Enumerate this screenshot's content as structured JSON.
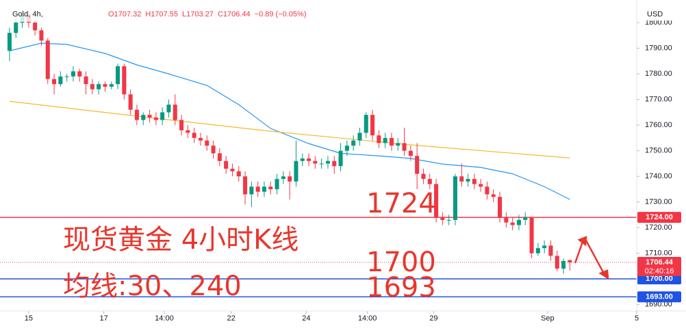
{
  "chart_data": {
    "type": "candlestick",
    "symbol": "Gold, 4h,",
    "header": [
      "O1707.32",
      "H1707.55",
      "L1703.27",
      "C1706.44",
      "−0.89 (−0.05%)"
    ],
    "currency": "USD",
    "up_color": "#089981",
    "down_color": "#f23645",
    "open": [
      1789,
      1796,
      1800,
      1803,
      1800,
      1797,
      1793,
      1778,
      1776,
      1779,
      1779,
      1781,
      1779,
      1776,
      1774,
      1776,
      1775,
      1776,
      1783,
      1772,
      1766,
      1762,
      1764,
      1763,
      1762,
      1765,
      1768,
      1762,
      1758,
      1757,
      1755,
      1754,
      1752,
      1749,
      1746,
      1743,
      1742,
      1740,
      1733,
      1736,
      1734,
      1736,
      1735,
      1739,
      1740,
      1738,
      1746,
      1747,
      1746,
      1745,
      1745,
      1746,
      1744,
      1750,
      1752,
      1754,
      1757,
      1764,
      1756,
      1753,
      1755,
      1752,
      1753,
      1750,
      1748,
      1741,
      1739,
      1737,
      1724,
      1723,
      1723,
      1740,
      1738,
      1739,
      1737,
      1736,
      1733,
      1732,
      1724,
      1722,
      1721,
      1723,
      1724,
      1710,
      1712,
      1713,
      1709,
      1704,
      1707.32
    ],
    "high": [
      1798,
      1802,
      1805,
      1804,
      1801,
      1798,
      1794,
      1780,
      1781,
      1780,
      1783,
      1782,
      1781,
      1778,
      1777,
      1777,
      1777,
      1784,
      1784,
      1774,
      1768,
      1765,
      1766,
      1765,
      1767,
      1770,
      1772,
      1764,
      1760,
      1759,
      1757,
      1756,
      1754,
      1751,
      1748,
      1745,
      1744,
      1742,
      1738,
      1738,
      1738,
      1738,
      1741,
      1742,
      1742,
      1754,
      1749,
      1749,
      1748,
      1747,
      1748,
      1748,
      1753,
      1754,
      1756,
      1759,
      1765,
      1766,
      1758,
      1757,
      1757,
      1755,
      1759,
      1752,
      1753,
      1743,
      1741,
      1739,
      1726,
      1725,
      1741,
      1745,
      1741,
      1741,
      1739,
      1738,
      1735,
      1734,
      1726,
      1724,
      1725,
      1726,
      1724,
      1714,
      1715,
      1715,
      1711,
      1708,
      1707.55
    ],
    "low": [
      1785,
      1794,
      1798,
      1798,
      1795,
      1791,
      1776,
      1772,
      1775,
      1777,
      1777,
      1777,
      1772,
      1772,
      1772,
      1773,
      1774,
      1774,
      1770,
      1764,
      1760,
      1760,
      1761,
      1760,
      1760,
      1763,
      1760,
      1756,
      1755,
      1753,
      1752,
      1750,
      1747,
      1744,
      1741,
      1740,
      1738,
      1729,
      1728,
      1732,
      1732,
      1733,
      1733,
      1737,
      1731,
      1736,
      1744,
      1744,
      1743,
      1743,
      1743,
      1741,
      1742,
      1748,
      1750,
      1752,
      1755,
      1754,
      1751,
      1751,
      1750,
      1750,
      1748,
      1746,
      1735,
      1737,
      1735,
      1722,
      1721,
      1721,
      1721,
      1736,
      1736,
      1735,
      1734,
      1731,
      1730,
      1722,
      1720,
      1719,
      1719,
      1721,
      1708,
      1709,
      1710,
      1707,
      1703,
      1702,
      1703.27
    ],
    "close": [
      1796,
      1800,
      1803,
      1800,
      1797,
      1793,
      1778,
      1776,
      1779,
      1779,
      1781,
      1779,
      1776,
      1774,
      1776,
      1775,
      1776,
      1783,
      1772,
      1766,
      1762,
      1764,
      1763,
      1762,
      1765,
      1768,
      1762,
      1758,
      1757,
      1755,
      1754,
      1752,
      1749,
      1746,
      1743,
      1742,
      1740,
      1733,
      1736,
      1734,
      1736,
      1735,
      1739,
      1740,
      1738,
      1746,
      1747,
      1746,
      1745,
      1745,
      1746,
      1744,
      1750,
      1752,
      1754,
      1757,
      1764,
      1756,
      1753,
      1755,
      1752,
      1753,
      1750,
      1748,
      1741,
      1739,
      1737,
      1724,
      1723,
      1723,
      1740,
      1738,
      1739,
      1737,
      1736,
      1733,
      1732,
      1724,
      1722,
      1721,
      1723,
      1724,
      1710,
      1712,
      1713,
      1709,
      1704,
      1707,
      1706.44
    ],
    "series": [
      {
        "color": "#2196f3",
        "x": [
          0,
          5,
          9,
          15,
          20,
          25,
          31,
          36,
          41,
          47,
          52,
          58,
          63,
          68,
          74,
          79,
          84,
          88
        ],
        "values": [
          1789,
          1792,
          1791.5,
          1788,
          1783.5,
          1780,
          1775.5,
          1768,
          1758.7,
          1752.8,
          1749,
          1748,
          1747,
          1744.8,
          1743.5,
          1741,
          1736,
          1731
        ]
      },
      {
        "color": "#f5b82e",
        "x": [
          0,
          20,
          41,
          63,
          88
        ],
        "values": [
          1769.3,
          1763.5,
          1757.6,
          1752.3,
          1747.2
        ]
      }
    ],
    "hlines": [
      {
        "value": 1724,
        "label": "1724.00",
        "color": "#f23645"
      },
      {
        "value": 1700,
        "label": "1700.00",
        "color": "#1e53e5"
      },
      {
        "value": 1693,
        "label": "1693.00",
        "color": "#1e53e5"
      }
    ],
    "last": {
      "value": 1706.44,
      "label": "1706.44",
      "countdown": "02:40:16",
      "color": "#f23645"
    },
    "annotations": [
      "1724",
      "现货黄金 4小时K线",
      "1700",
      "均线:30、240",
      "1693"
    ],
    "xlim": [
      -1.5,
      98.5
    ],
    "xticks": [
      {
        "value": 3,
        "label": "15"
      },
      {
        "value": 14.8,
        "label": "17"
      },
      {
        "value": 24.3,
        "label": "14:00"
      },
      {
        "value": 34.8,
        "label": "22"
      },
      {
        "value": 46.6,
        "label": "24"
      },
      {
        "value": 56.2,
        "label": "14:00"
      },
      {
        "value": 66.6,
        "label": "29"
      },
      {
        "value": 84.5,
        "label": "Sep"
      },
      {
        "value": 98.5,
        "label": "5"
      }
    ],
    "ylim": [
      1687.5,
      1806.7
    ],
    "yticks": [
      {
        "value": 1690,
        "label": "1690.00"
      },
      {
        "value": 1710,
        "label": "1710.00"
      },
      {
        "value": 1720,
        "label": "1720.00"
      },
      {
        "value": 1730,
        "label": "1730.00"
      },
      {
        "value": 1740,
        "label": "1740.00"
      },
      {
        "value": 1750,
        "label": "1750.00"
      },
      {
        "value": 1760,
        "label": "1760.00"
      },
      {
        "value": 1770,
        "label": "1770.00"
      },
      {
        "value": 1780,
        "label": "1780.00"
      },
      {
        "value": 1790,
        "label": "1790.00"
      },
      {
        "value": 1800,
        "label": "1800.00"
      }
    ]
  }
}
